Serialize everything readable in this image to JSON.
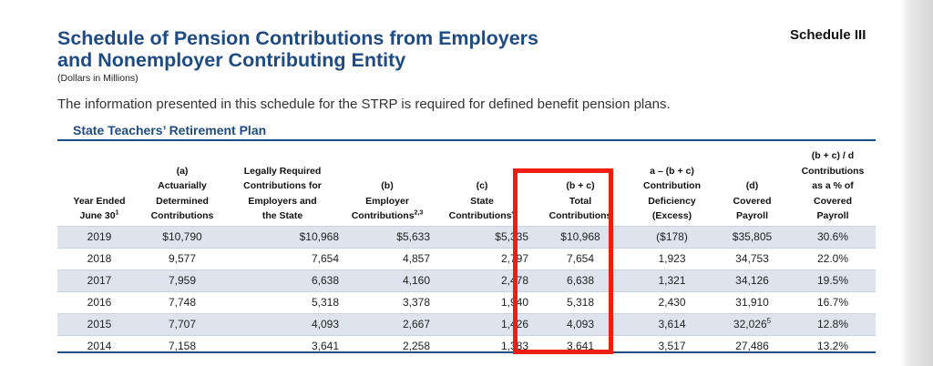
{
  "header": {
    "title_line1": "Schedule of Pension Contributions from Employers",
    "title_line2": "and Nonemployer Contributing Entity",
    "units": "(Dollars in Millions)",
    "schedule_label": "Schedule III"
  },
  "intro": "The information presented in this schedule for the STRP is required for defined benefit pension plans.",
  "plan_name": "State Teachers’ Retirement Plan",
  "columns": {
    "year": {
      "line1": "Year Ended",
      "line2": "June 30",
      "sup": "1"
    },
    "a": {
      "line1": "(a)",
      "line2": "Actuarially",
      "line3": "Determined",
      "line4": "Contributions"
    },
    "legal": {
      "line1": "Legally Required",
      "line2": "Contributions for",
      "line3": "Employers and",
      "line4": "the State"
    },
    "b": {
      "line1": "(b)",
      "line2": "Employer",
      "line3": "Contributions",
      "sup": "2,3"
    },
    "c": {
      "line1": "(c)",
      "line2": "State",
      "line3": "Contributions",
      "sup": "4"
    },
    "total": {
      "line1": "(b + c)",
      "line2": "Total",
      "line3": "Contributions"
    },
    "deficiency": {
      "line1": "a – (b + c)",
      "line2": "Contribution",
      "line3": "Deficiency",
      "line4": "(Excess)"
    },
    "d": {
      "line1": "(d)",
      "line2": "Covered",
      "line3": "Payroll"
    },
    "pct": {
      "line1": "(b + c) / d",
      "line2": "Contributions",
      "line3": "as a % of",
      "line4": "Covered",
      "line5": "Payroll"
    }
  },
  "rows": [
    {
      "year": "2019",
      "a": "$10,790",
      "legal": "$10,968",
      "b": "$5,633",
      "c": "$5,335",
      "total": "$10,968",
      "deficiency": "($178)",
      "d": "$35,805",
      "d_sup": "",
      "pct": "30.6%"
    },
    {
      "year": "2018",
      "a": "9,577",
      "legal": "7,654",
      "b": "4,857",
      "c": "2,797",
      "total": "7,654",
      "deficiency": "1,923",
      "d": "34,753",
      "d_sup": "",
      "pct": "22.0%"
    },
    {
      "year": "2017",
      "a": "7,959",
      "legal": "6,638",
      "b": "4,160",
      "c": "2,478",
      "total": "6,638",
      "deficiency": "1,321",
      "d": "34,126",
      "d_sup": "",
      "pct": "19.5%"
    },
    {
      "year": "2016",
      "a": "7,748",
      "legal": "5,318",
      "b": "3,378",
      "c": "1,940",
      "total": "5,318",
      "deficiency": "2,430",
      "d": "31,910",
      "d_sup": "",
      "pct": "16.7%"
    },
    {
      "year": "2015",
      "a": "7,707",
      "legal": "4,093",
      "b": "2,667",
      "c": "1,426",
      "total": "4,093",
      "deficiency": "3,614",
      "d": "32,026",
      "d_sup": "5",
      "pct": "12.8%"
    },
    {
      "year": "2014",
      "a": "7,158",
      "legal": "3,641",
      "b": "2,258",
      "c": "1,383",
      "total": "3,641",
      "deficiency": "3,517",
      "d": "27,486",
      "d_sup": "",
      "pct": "13.2%"
    }
  ],
  "colors": {
    "heading_blue": "#1f4b84",
    "row_shade": "#dde4ee",
    "highlight_red": "#f01e10"
  }
}
